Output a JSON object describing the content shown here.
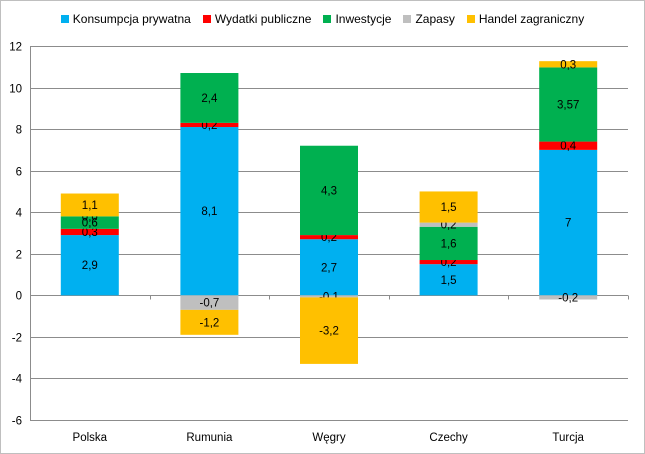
{
  "chart_data": {
    "type": "bar",
    "stacked": true,
    "categories": [
      "Polska",
      "Rumunia",
      "Węgry",
      "Czechy",
      "Turcja"
    ],
    "ylim": [
      -6,
      12
    ],
    "yticks": [
      -6,
      -4,
      -2,
      0,
      2,
      4,
      6,
      8,
      10,
      12
    ],
    "grid": true,
    "legend_position": "top",
    "series": [
      {
        "name": "Konsumpcja prywatna",
        "color": "#00b0f0",
        "values": [
          2.9,
          8.1,
          2.7,
          1.5,
          7
        ],
        "labels": [
          "2,9",
          "8,1",
          "2,7",
          "1,5",
          "7"
        ]
      },
      {
        "name": "Wydatki publiczne",
        "color": "#ff0000",
        "values": [
          0.3,
          0.2,
          0.2,
          0.2,
          0.4
        ],
        "labels": [
          "0,3",
          "0,2",
          "0,2",
          "0,2",
          "0,4"
        ]
      },
      {
        "name": "Inwestycje",
        "color": "#00b050",
        "values": [
          0.6,
          2.4,
          4.3,
          1.6,
          3.57
        ],
        "labels": [
          "0,6",
          "2,4",
          "4,3",
          "1,6",
          "3,57"
        ]
      },
      {
        "name": "Zapasy",
        "color": "#bfbfbf",
        "values": [
          0.0,
          -0.7,
          -0.1,
          0.2,
          -0.2
        ],
        "labels": [
          "0,0",
          "-0,7",
          "-0,1",
          "0,2",
          "-0,2"
        ]
      },
      {
        "name": "Handel zagraniczny",
        "color": "#ffc000",
        "values": [
          1.1,
          -1.2,
          -3.2,
          1.5,
          0.3
        ],
        "labels": [
          "1,1",
          "-1,2",
          "-3,2",
          "1,5",
          "0,3"
        ]
      }
    ]
  }
}
